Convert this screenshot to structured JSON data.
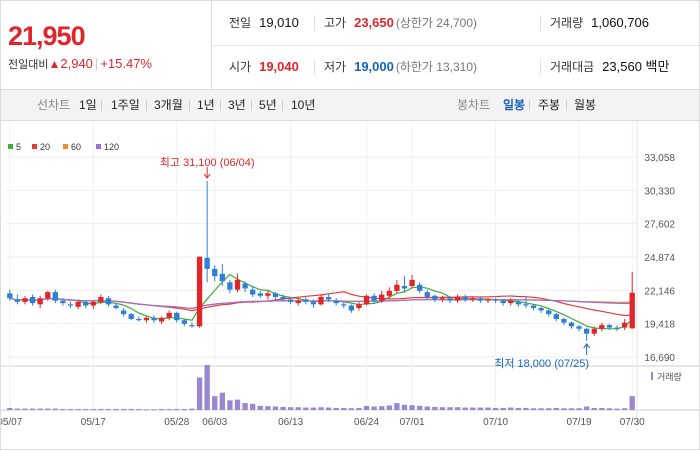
{
  "summary": {
    "price": "21,950",
    "change_label": "전일대비",
    "change_arrow": "▲",
    "change_value": "2,940",
    "change_pct": "+15.47%"
  },
  "stats": {
    "prev_close_label": "전일",
    "prev_close": "19,010",
    "high_label": "고가",
    "high": "23,650",
    "upper_limit": "(상한가 24,700)",
    "volume_label": "거래량",
    "volume": "1,060,706",
    "open_label": "시가",
    "open": "19,040",
    "low_label": "저가",
    "low": "19,000",
    "lower_limit": "(하한가 13,310)",
    "trade_value_label": "거래대금",
    "trade_value": "23,560 백만"
  },
  "line_chart_tab": {
    "label": "선차트",
    "ranges": [
      "1일",
      "1주일",
      "3개월",
      "1년",
      "3년",
      "5년",
      "10년"
    ]
  },
  "candle_chart_tab": {
    "label": "봉차트",
    "periods": [
      "일봉",
      "주봉",
      "월봉"
    ],
    "selected_period": "일봉"
  },
  "colors": {
    "up": "#e0262b",
    "down": "#2f7fd6",
    "ma5": "#3eac3e",
    "ma20": "#e23b3b",
    "ma60": "#f28c28",
    "ma120": "#9a6fd1",
    "volume": "#9b87cf"
  },
  "chart_data": {
    "type": "candlestick",
    "legend": [
      "5",
      "20",
      "60",
      "120"
    ],
    "y_ticks": [
      "33,058",
      "30,330",
      "27,602",
      "24,874",
      "22,146",
      "19,418",
      "16,690"
    ],
    "ylim": [
      16690,
      33058
    ],
    "x_ticks": [
      "05/07",
      "05/17",
      "05/28",
      "06/03",
      "06/13",
      "06/24",
      "07/01",
      "07/10",
      "07/19",
      "07/30"
    ],
    "volume_label": "거래량",
    "annotations": {
      "max": "최고 31,100 (06/04)",
      "min": "최저 18,000 (07/25)"
    },
    "candles": [
      [
        21900,
        21500,
        22200,
        21300
      ],
      [
        21400,
        21200,
        21800,
        21000
      ],
      [
        21200,
        21500,
        21700,
        21000
      ],
      [
        21600,
        21100,
        21800,
        20900
      ],
      [
        21000,
        21500,
        21700,
        20700
      ],
      [
        21500,
        22000,
        22100,
        21300
      ],
      [
        22000,
        21300,
        22200,
        21100
      ],
      [
        21300,
        21100,
        21500,
        20900
      ],
      [
        21000,
        20900,
        21200,
        20700
      ],
      [
        20800,
        21200,
        21300,
        20600
      ],
      [
        21200,
        20900,
        21300,
        20700
      ],
      [
        20900,
        21200,
        21300,
        20600
      ],
      [
        21200,
        21600,
        21800,
        21000
      ],
      [
        21500,
        21000,
        21700,
        20800
      ],
      [
        20900,
        20700,
        21100,
        20600
      ],
      [
        20500,
        20200,
        20700,
        20000
      ],
      [
        20200,
        19800,
        20300,
        19700
      ],
      [
        19800,
        19700,
        20000,
        19600
      ],
      [
        19700,
        19900,
        20000,
        19500
      ],
      [
        19900,
        19700,
        20100,
        19500
      ],
      [
        19600,
        19900,
        20000,
        19400
      ],
      [
        19900,
        20300,
        20500,
        19700
      ],
      [
        20300,
        19700,
        20400,
        19500
      ],
      [
        19700,
        19400,
        19800,
        19200
      ],
      [
        19300,
        19200,
        19500,
        19100
      ],
      [
        19200,
        24900,
        24900,
        19100
      ],
      [
        24800,
        23900,
        31100,
        22800
      ],
      [
        23900,
        23300,
        24200,
        22900
      ],
      [
        23500,
        22900,
        24300,
        22500
      ],
      [
        22800,
        22200,
        23000,
        21900
      ],
      [
        22200,
        23000,
        23500,
        22000
      ],
      [
        22700,
        22300,
        22900,
        22000
      ],
      [
        22200,
        21800,
        22500,
        21600
      ],
      [
        21900,
        21700,
        22100,
        21500
      ],
      [
        21700,
        21900,
        22100,
        21400
      ],
      [
        21900,
        21600,
        22000,
        21300
      ],
      [
        21600,
        21400,
        21800,
        21200
      ],
      [
        21400,
        21200,
        21500,
        21000
      ],
      [
        21100,
        21300,
        21500,
        20900
      ],
      [
        21400,
        21200,
        21600,
        21000
      ],
      [
        21200,
        21000,
        21400,
        20700
      ],
      [
        21000,
        21600,
        21800,
        20900
      ],
      [
        21600,
        21400,
        21900,
        21200
      ],
      [
        21300,
        21100,
        21500,
        20900
      ],
      [
        21000,
        20900,
        21200,
        20700
      ],
      [
        20900,
        20500,
        21000,
        20300
      ],
      [
        20700,
        21000,
        21200,
        20500
      ],
      [
        21000,
        21700,
        21800,
        20900
      ],
      [
        21700,
        21300,
        21900,
        21100
      ],
      [
        21300,
        21800,
        22100,
        21100
      ],
      [
        21700,
        22100,
        22400,
        21500
      ],
      [
        22100,
        22600,
        23000,
        21900
      ],
      [
        22500,
        22300,
        23300,
        22000
      ],
      [
        22500,
        23000,
        23400,
        22300
      ],
      [
        22600,
        22100,
        22800,
        21900
      ],
      [
        22000,
        21600,
        22200,
        21400
      ],
      [
        21700,
        21400,
        21800,
        21200
      ],
      [
        21400,
        21500,
        21700,
        21200
      ],
      [
        21500,
        21300,
        21600,
        21100
      ],
      [
        21300,
        21600,
        21800,
        21100
      ],
      [
        21600,
        21400,
        21800,
        21200
      ],
      [
        21400,
        21500,
        21600,
        21200
      ],
      [
        21500,
        21300,
        21600,
        21100
      ],
      [
        21300,
        21400,
        21500,
        21100
      ],
      [
        21400,
        21300,
        21500,
        21100
      ],
      [
        21300,
        21100,
        21400,
        20900
      ],
      [
        21100,
        21300,
        21500,
        20900
      ],
      [
        21200,
        21000,
        21400,
        20800
      ],
      [
        21000,
        20900,
        21600,
        20700
      ],
      [
        20900,
        20700,
        21000,
        20500
      ],
      [
        20700,
        20500,
        20800,
        20300
      ],
      [
        20500,
        20200,
        20600,
        20000
      ],
      [
        20200,
        19800,
        20300,
        19600
      ],
      [
        19800,
        19500,
        19900,
        19300
      ],
      [
        19500,
        19200,
        19600,
        19000
      ],
      [
        19200,
        19000,
        19300,
        18800
      ],
      [
        19000,
        18600,
        19100,
        18000
      ],
      [
        18600,
        19000,
        19200,
        18400
      ],
      [
        19000,
        19300,
        19500,
        18800
      ],
      [
        19300,
        19100,
        19400,
        18900
      ],
      [
        19100,
        19000,
        19300,
        18800
      ],
      [
        19100,
        19500,
        19800,
        18900
      ],
      [
        19040,
        21950,
        23650,
        19000
      ]
    ],
    "volumes": [
      60,
      40,
      40,
      40,
      40,
      40,
      40,
      30,
      30,
      30,
      30,
      30,
      30,
      30,
      30,
      30,
      30,
      30,
      20,
      20,
      30,
      30,
      30,
      30,
      40,
      940,
      1300,
      400,
      500,
      280,
      300,
      200,
      180,
      120,
      110,
      100,
      90,
      80,
      80,
      70,
      70,
      80,
      70,
      60,
      60,
      50,
      60,
      120,
      100,
      110,
      130,
      200,
      150,
      140,
      120,
      100,
      90,
      80,
      80,
      80,
      70,
      70,
      70,
      70,
      60,
      60,
      70,
      60,
      60,
      50,
      50,
      50,
      60,
      50,
      50,
      50,
      100,
      60,
      60,
      50,
      40,
      50,
      400
    ]
  }
}
